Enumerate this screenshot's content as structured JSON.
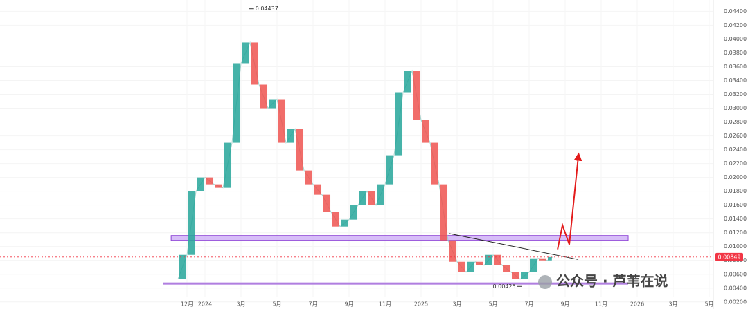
{
  "chart_data": {
    "type": "candles",
    "x": [
      -0.5,
      0,
      0.5,
      1,
      1.5,
      2,
      2.5,
      3,
      3.5,
      4,
      4.5,
      5,
      5.5,
      6,
      6.5,
      7,
      7.5,
      8,
      8.5,
      9,
      9.5,
      10,
      10.5,
      11,
      11.5,
      12,
      12.5,
      13,
      13.5,
      14,
      14.5,
      15,
      15.5,
      16,
      16.5,
      17,
      17.5,
      18,
      18.5,
      19,
      19.5,
      20,
      20.3
    ],
    "values": [
      0.0053,
      0.0088,
      0.018,
      0.02,
      0.019,
      0.0185,
      0.025,
      0.0365,
      0.0395,
      0.0334,
      0.03,
      0.0313,
      0.025,
      0.027,
      0.021,
      0.019,
      0.0175,
      0.015,
      0.0129,
      0.0139,
      0.016,
      0.018,
      0.016,
      0.019,
      0.0232,
      0.0323,
      0.0354,
      0.0283,
      0.025,
      0.019,
      0.0109,
      0.0078,
      0.0063,
      0.0078,
      0.0073,
      0.0088,
      0.0073,
      0.0063,
      0.0053,
      0.0063,
      0.0083,
      0.008,
      0.00849
    ],
    "up_color": "#26a69a",
    "down_color": "#ef5350",
    "xlim": [
      -10.385,
      29.23
    ],
    "ylim": [
      0.00098,
      0.04564
    ],
    "grid": true,
    "xticks": [
      {
        "value": 0,
        "label": "12月"
      },
      {
        "value": 1,
        "label": "2024"
      },
      {
        "value": 3,
        "label": "3月"
      },
      {
        "value": 5,
        "label": "5月"
      },
      {
        "value": 7,
        "label": "7月"
      },
      {
        "value": 9,
        "label": "9月"
      },
      {
        "value": 11,
        "label": "11月"
      },
      {
        "value": 13,
        "label": "2025"
      },
      {
        "value": 15,
        "label": "3月"
      },
      {
        "value": 17,
        "label": "5月"
      },
      {
        "value": 19,
        "label": "7月"
      },
      {
        "value": 21,
        "label": "9月"
      },
      {
        "value": 23,
        "label": "11月"
      },
      {
        "value": 25,
        "label": "2026"
      },
      {
        "value": 27,
        "label": "3月"
      },
      {
        "value": 29,
        "label": "5月"
      }
    ],
    "yticks": [
      {
        "value": 0.002,
        "label": "0.00200"
      },
      {
        "value": 0.004,
        "label": "0.00400"
      },
      {
        "value": 0.006,
        "label": "0.00600"
      },
      {
        "value": 0.008,
        "label": "0.00800"
      },
      {
        "value": 0.01,
        "label": "0.01000"
      },
      {
        "value": 0.012,
        "label": "0.01200"
      },
      {
        "value": 0.014,
        "label": "0.01400"
      },
      {
        "value": 0.016,
        "label": "0.01600"
      },
      {
        "value": 0.018,
        "label": "0.01800"
      },
      {
        "value": 0.02,
        "label": "0.02000"
      },
      {
        "value": 0.022,
        "label": "0.02200"
      },
      {
        "value": 0.024,
        "label": "0.02400"
      },
      {
        "value": 0.026,
        "label": "0.02600"
      },
      {
        "value": 0.028,
        "label": "0.02800"
      },
      {
        "value": 0.03,
        "label": "0.03000"
      },
      {
        "value": 0.032,
        "label": "0.03200"
      },
      {
        "value": 0.034,
        "label": "0.03400"
      },
      {
        "value": 0.036,
        "label": "0.03600"
      },
      {
        "value": 0.038,
        "label": "0.03800"
      },
      {
        "value": 0.04,
        "label": "0.04000"
      },
      {
        "value": 0.042,
        "label": "0.04200"
      },
      {
        "value": 0.044,
        "label": "0.04400"
      }
    ],
    "zone": {
      "x": [
        -0.88,
        24.5
      ],
      "y": [
        0.0109,
        0.0116
      ],
      "color": "#c9a7f5"
    },
    "support": {
      "x": [
        -1.31,
        24.5
      ],
      "y": [
        0.00466,
        0.00466
      ],
      "color": "#b07ee0"
    },
    "trendline": {
      "x": [
        14.54,
        21.73
      ],
      "y": [
        0.0119,
        0.00813
      ]
    },
    "projection": {
      "x": [
        20.58,
        20.85,
        21.23,
        21.73
      ],
      "y": [
        0.0096,
        0.0131,
        0.0103,
        0.023
      ],
      "color": "#e31b1b"
    },
    "high_label": {
      "x": 3.45,
      "value": 0.04437,
      "label": "0.04437"
    },
    "low_label": {
      "x": 18.6,
      "value": 0.00425,
      "label": "0.00425"
    },
    "current_price": {
      "value": 0.00849,
      "label": "0.00849",
      "color": "#f23645"
    },
    "watermark": "公众号 · 芦苇在说"
  }
}
